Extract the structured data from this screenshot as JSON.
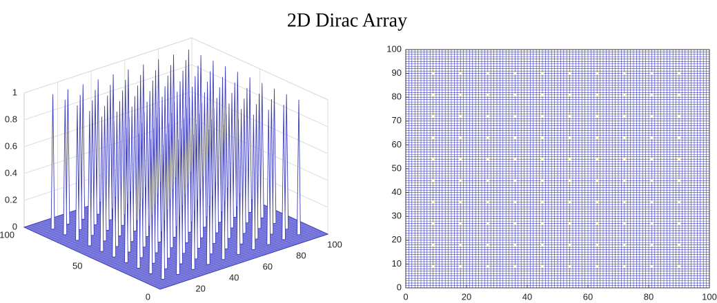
{
  "title": "2D Dirac Array",
  "chart_data": [
    {
      "type": "surface3d",
      "xlim": [
        0,
        100
      ],
      "ylim": [
        0,
        100
      ],
      "zlim": [
        0,
        1
      ],
      "xticks": [
        20,
        40,
        60,
        80,
        100
      ],
      "yticks": [
        0,
        50,
        100
      ],
      "zticks": [
        0,
        0.2,
        0.4,
        0.6,
        0.8,
        1
      ],
      "spike_x": [
        9,
        18,
        27,
        36,
        45,
        54,
        63,
        72,
        81,
        90
      ],
      "spike_y": [
        9,
        18,
        27,
        36,
        45,
        54,
        63,
        72,
        81,
        90
      ],
      "spike_height": 1,
      "color": "#3a3ab8",
      "grid": true
    },
    {
      "type": "mesh-top",
      "xlim": [
        0,
        100
      ],
      "ylim": [
        0,
        100
      ],
      "xticks": [
        0,
        20,
        40,
        60,
        80,
        100
      ],
      "yticks": [
        0,
        10,
        20,
        30,
        40,
        50,
        60,
        70,
        80,
        90,
        100
      ],
      "spike_x": [
        9,
        18,
        27,
        36,
        45,
        54,
        63,
        72,
        81,
        90
      ],
      "spike_y": [
        9,
        18,
        27,
        36,
        45,
        54,
        63,
        72,
        81,
        90
      ],
      "spike_height": 1,
      "color": "#3a3ab8",
      "spike_color": "#ffffc0"
    }
  ]
}
